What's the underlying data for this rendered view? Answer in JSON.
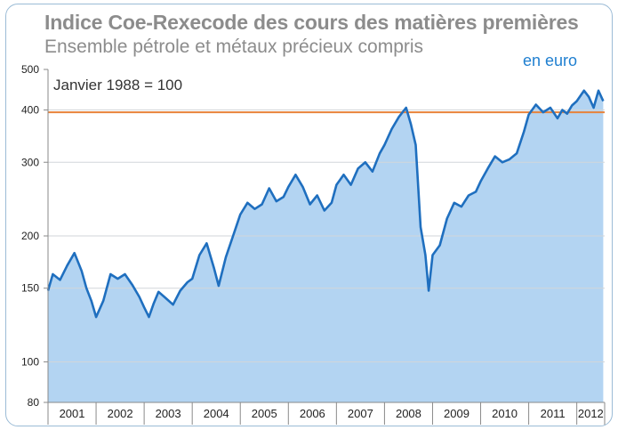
{
  "chart_data": {
    "type": "area",
    "title": "Indice Coe-Rexecode des cours des matières premières",
    "subtitle": "Ensemble pétrole et métaux précieux compris",
    "unit_label": "en euro",
    "base_note": "Janvier 1988 = 100",
    "y_scale": "log",
    "ylim": [
      80,
      500
    ],
    "y_ticks": [
      "500",
      "400",
      "300",
      "200",
      "150",
      "100",
      "80"
    ],
    "xlim": [
      2001,
      2012.58
    ],
    "x_tick_labels": [
      "2001",
      "2002",
      "2003",
      "2004",
      "2005",
      "2006",
      "2007",
      "2008",
      "2009",
      "2010",
      "2011",
      "2012"
    ],
    "reference_line": {
      "value": 395,
      "color": "#e8833a"
    },
    "series_color": "#1f6fbf",
    "fill_color": "#b3d4f2",
    "grid": true,
    "x": [
      2001.0,
      2001.1,
      2001.25,
      2001.4,
      2001.55,
      2001.7,
      2001.8,
      2001.9,
      2002.0,
      2002.15,
      2002.3,
      2002.45,
      2002.6,
      2002.75,
      2002.9,
      2003.0,
      2003.1,
      2003.2,
      2003.3,
      2003.45,
      2003.6,
      2003.75,
      2003.9,
      2004.0,
      2004.15,
      2004.3,
      2004.45,
      2004.55,
      2004.7,
      2004.85,
      2005.0,
      2005.15,
      2005.3,
      2005.45,
      2005.6,
      2005.75,
      2005.9,
      2006.0,
      2006.15,
      2006.3,
      2006.45,
      2006.6,
      2006.75,
      2006.9,
      2007.0,
      2007.15,
      2007.3,
      2007.45,
      2007.6,
      2007.75,
      2007.9,
      2008.0,
      2008.15,
      2008.3,
      2008.45,
      2008.55,
      2008.65,
      2008.75,
      2008.85,
      2008.92,
      2009.0,
      2009.15,
      2009.3,
      2009.45,
      2009.6,
      2009.75,
      2009.9,
      2010.0,
      2010.15,
      2010.3,
      2010.45,
      2010.6,
      2010.75,
      2010.9,
      2011.0,
      2011.15,
      2011.3,
      2011.45,
      2011.6,
      2011.7,
      2011.8,
      2011.9,
      2012.0,
      2012.15,
      2012.25,
      2012.35,
      2012.45,
      2012.55
    ],
    "values": [
      148,
      162,
      157,
      170,
      182,
      165,
      150,
      140,
      128,
      140,
      162,
      158,
      162,
      153,
      143,
      135,
      128,
      138,
      147,
      142,
      137,
      148,
      155,
      158,
      180,
      192,
      168,
      152,
      178,
      200,
      225,
      240,
      232,
      238,
      260,
      242,
      248,
      262,
      280,
      262,
      238,
      250,
      230,
      240,
      265,
      280,
      265,
      290,
      300,
      285,
      315,
      330,
      360,
      385,
      405,
      370,
      330,
      210,
      180,
      148,
      180,
      190,
      220,
      240,
      235,
      250,
      255,
      270,
      290,
      310,
      300,
      305,
      315,
      355,
      390,
      412,
      395,
      405,
      382,
      400,
      392,
      410,
      420,
      445,
      430,
      405,
      445,
      420
    ]
  }
}
